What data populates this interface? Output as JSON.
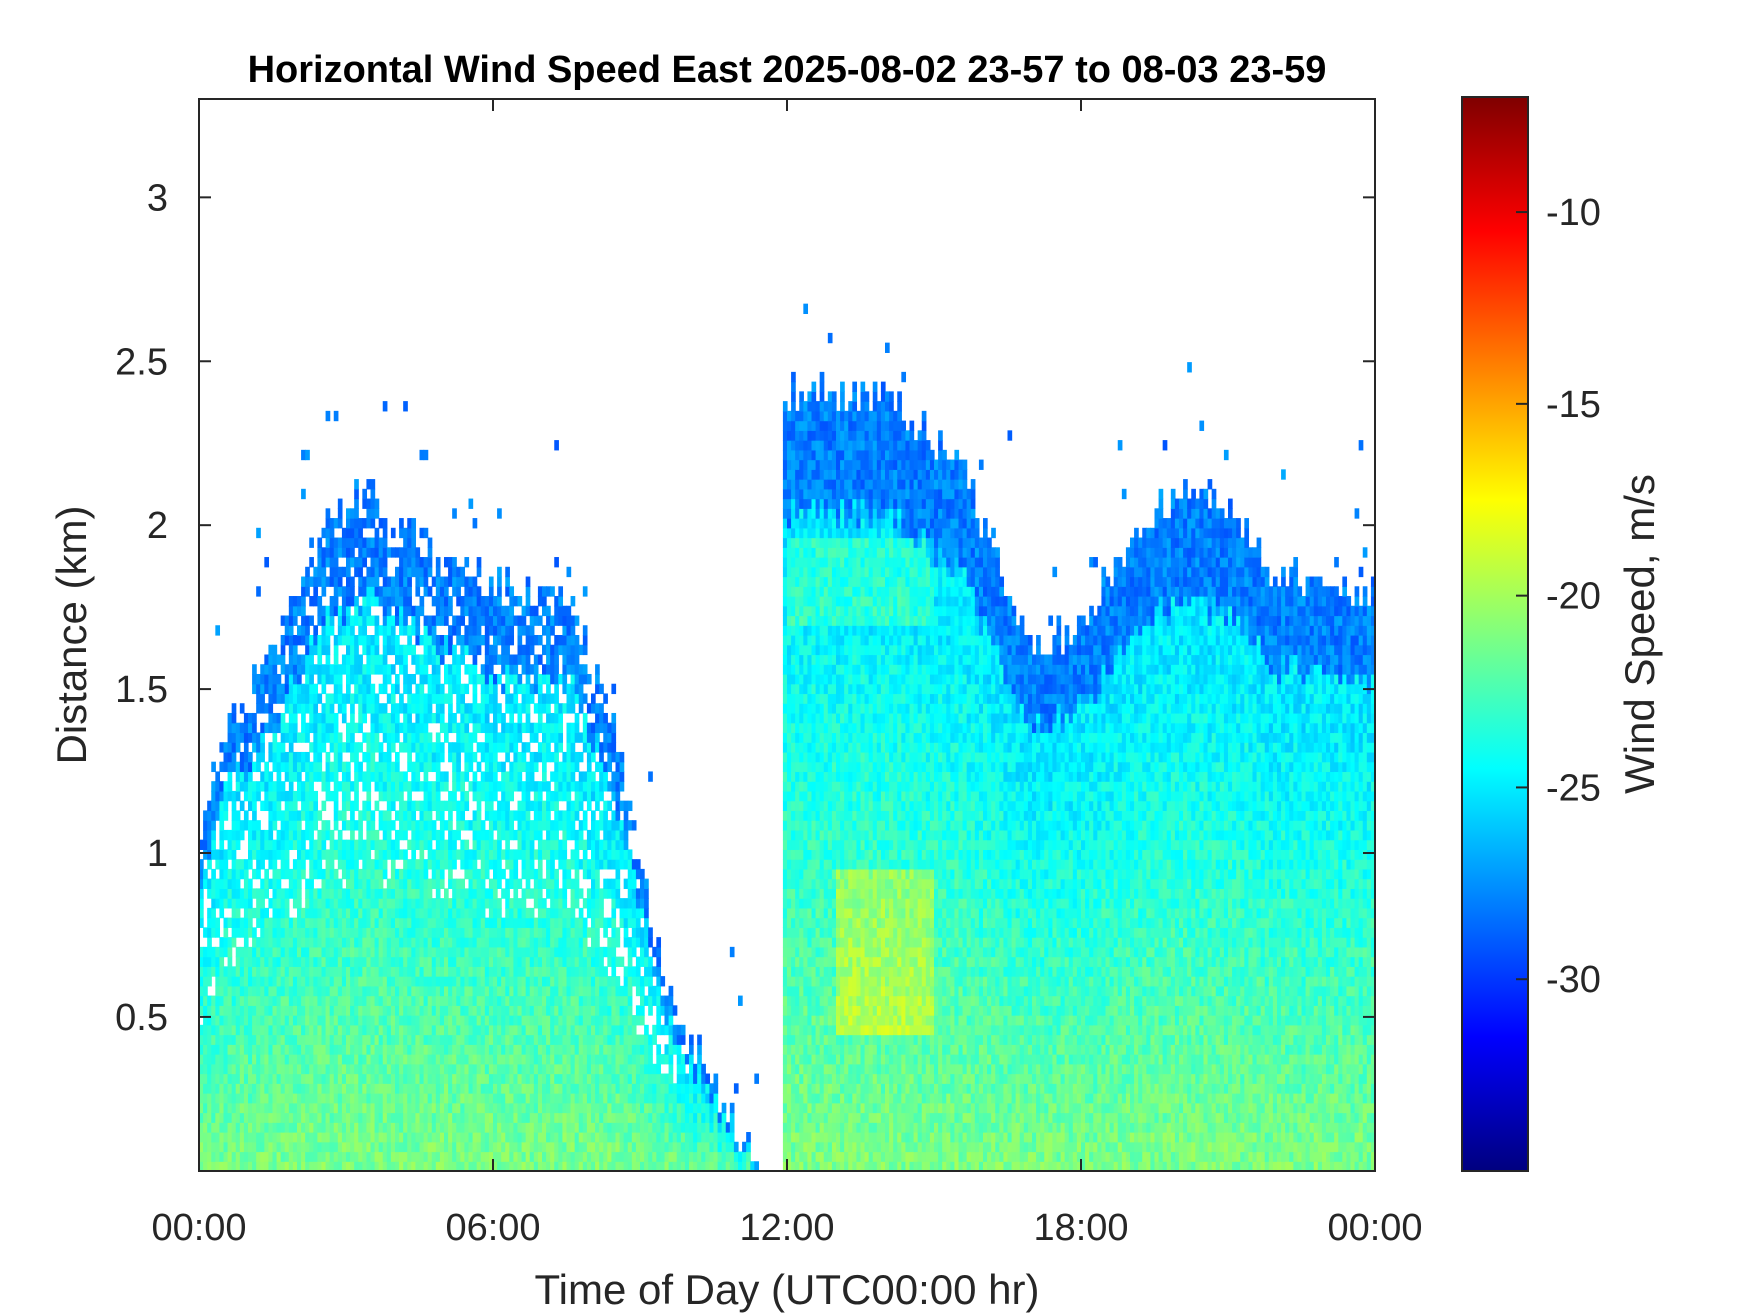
{
  "chart_data": {
    "type": "heatmap",
    "title": "Horizontal Wind Speed East 2025-08-02 23-57 to 08-03 23-59",
    "xlabel": "Time of Day (UTC00:00 hr)",
    "ylabel": "Distance (km)",
    "x_unit": "hours",
    "xlim": [
      0,
      24
    ],
    "ylim": [
      0.03,
      3.3
    ],
    "x_ticks": [
      {
        "value": 0,
        "label": "00:00"
      },
      {
        "value": 6,
        "label": "06:00"
      },
      {
        "value": 12,
        "label": "12:00"
      },
      {
        "value": 18,
        "label": "18:00"
      },
      {
        "value": 24,
        "label": "00:00"
      }
    ],
    "y_ticks": [
      {
        "value": 0.5,
        "label": "0.5"
      },
      {
        "value": 1,
        "label": "1"
      },
      {
        "value": 1.5,
        "label": "1.5"
      },
      {
        "value": 2,
        "label": "2"
      },
      {
        "value": 2.5,
        "label": "2.5"
      },
      {
        "value": 3,
        "label": "3"
      }
    ],
    "colorbar": {
      "label": "Wind Speed, m/s",
      "range": [
        -35,
        -7
      ],
      "colormap": "jet",
      "ticks": [
        {
          "value": -10,
          "label": "-10"
        },
        {
          "value": -15,
          "label": "-15"
        },
        {
          "value": -20,
          "label": "-20"
        },
        {
          "value": -25,
          "label": "-25"
        },
        {
          "value": -30,
          "label": "-30"
        }
      ]
    },
    "grid": false,
    "data_top_height_km": [
      {
        "t": 0.0,
        "top": 1.0
      },
      {
        "t": 0.5,
        "top": 1.4
      },
      {
        "t": 1.5,
        "top": 1.6
      },
      {
        "t": 2.5,
        "top": 2.0
      },
      {
        "t": 3.5,
        "top": 2.1
      },
      {
        "t": 5.0,
        "top": 1.9
      },
      {
        "t": 6.5,
        "top": 1.8
      },
      {
        "t": 7.5,
        "top": 1.8
      },
      {
        "t": 8.5,
        "top": 1.4
      },
      {
        "t": 9.5,
        "top": 0.6
      },
      {
        "t": 10.5,
        "top": 0.3
      },
      {
        "t": 11.4,
        "top": 0.05
      },
      {
        "t": 12.0,
        "top": 2.4
      },
      {
        "t": 13.0,
        "top": 2.4
      },
      {
        "t": 14.0,
        "top": 2.4
      },
      {
        "t": 15.5,
        "top": 2.2
      },
      {
        "t": 17.0,
        "top": 1.6
      },
      {
        "t": 18.0,
        "top": 1.7
      },
      {
        "t": 19.5,
        "top": 2.05
      },
      {
        "t": 21.0,
        "top": 2.05
      },
      {
        "t": 22.0,
        "top": 1.85
      },
      {
        "t": 24.0,
        "top": 1.8
      }
    ],
    "data_gaps_hours": [
      [
        11.45,
        11.95
      ],
      [
        22.05,
        22.12
      ]
    ],
    "typical_speed_m_s": {
      "near_surface": -21,
      "mid_layer": -25,
      "top_edge": -28
    }
  }
}
